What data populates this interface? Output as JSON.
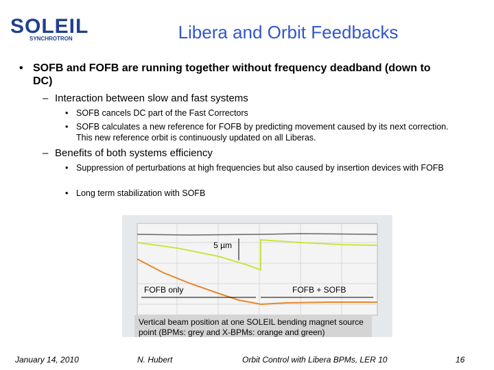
{
  "logo": {
    "name": "SOLEIL",
    "sub": "SYNCHROTRON"
  },
  "title": "Libera and Orbit Feedbacks",
  "bullet": {
    "text": "SOFB and FOFB are running together without frequency deadband (down to DC)",
    "items": [
      {
        "text": "Interaction between slow and fast systems",
        "items": [
          "SOFB cancels DC part of the Fast Correctors",
          "SOFB calculates a new reference for FOFB by predicting movement caused by its next correction. This new reference orbit is continuously updated on all Liberas."
        ]
      },
      {
        "text": "Benefits of both systems efficiency",
        "items": [
          "Suppression of perturbations at high frequencies but also caused by insertion devices with FOFB",
          "Long term stabilization with SOFB"
        ]
      }
    ]
  },
  "figure": {
    "scale_label": "5 µm",
    "left_label": "FOFB only",
    "right_label": "FOFB + SOFB",
    "caption": "Vertical beam position at one SOLEIL bending magnet source point (BPMs: grey and X-BPMs: orange and green)"
  },
  "footer": {
    "date": "January 14, 2010",
    "author": "N. Hubert",
    "event": "Orbit Control with Libera BPMs, LER 10",
    "page": "16"
  }
}
